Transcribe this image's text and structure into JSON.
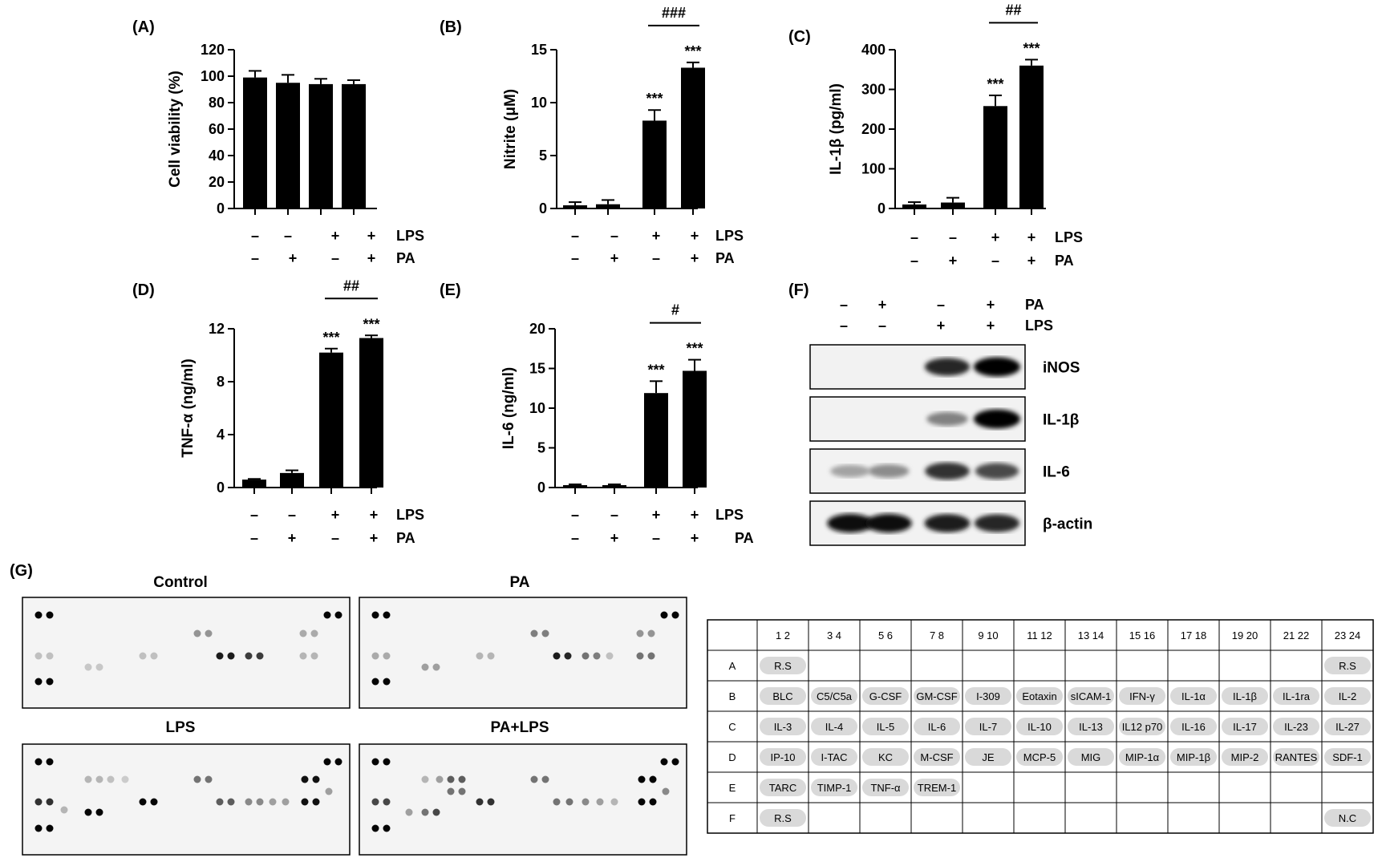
{
  "conditions": {
    "lps": [
      "–",
      "–",
      "+",
      "+"
    ],
    "pa": [
      "–",
      "+",
      "–",
      "+"
    ],
    "lps_label": "LPS",
    "pa_label": "PA"
  },
  "chart_data": [
    {
      "id": "A",
      "panel_label": "(A)",
      "type": "bar",
      "categories": [
        "–/–",
        "–/+",
        "+/–",
        "+/+"
      ],
      "values": [
        99,
        95,
        94,
        94
      ],
      "errors": [
        5,
        6,
        4,
        3
      ],
      "ylabel": "Cell viability (%)",
      "ylim": [
        0,
        120
      ],
      "yticks": [
        0,
        20,
        40,
        60,
        80,
        100,
        120
      ],
      "bar_sig": [
        "",
        "",
        "",
        ""
      ],
      "bracket": ""
    },
    {
      "id": "B",
      "panel_label": "(B)",
      "type": "bar",
      "categories": [
        "–/–",
        "–/+",
        "+/–",
        "+/+"
      ],
      "values": [
        0.3,
        0.4,
        8.3,
        13.3
      ],
      "errors": [
        0.3,
        0.4,
        1.0,
        0.5
      ],
      "ylabel": "Nitrite (μM)",
      "ylim": [
        0,
        15
      ],
      "yticks": [
        0,
        5,
        10,
        15
      ],
      "bar_sig": [
        "",
        "",
        "***",
        "***"
      ],
      "bracket": "###"
    },
    {
      "id": "C",
      "panel_label": "(C)",
      "type": "bar",
      "categories": [
        "–/–",
        "–/+",
        "+/–",
        "+/+"
      ],
      "values": [
        10,
        15,
        258,
        360
      ],
      "errors": [
        6,
        12,
        27,
        15
      ],
      "ylabel": "IL-1β (pg/ml)",
      "ylim": [
        0,
        400
      ],
      "yticks": [
        0,
        100,
        200,
        300,
        400
      ],
      "bar_sig": [
        "",
        "",
        "***",
        "***"
      ],
      "bracket": "##"
    },
    {
      "id": "D",
      "panel_label": "(D)",
      "type": "bar",
      "categories": [
        "–/–",
        "–/+",
        "+/–",
        "+/+"
      ],
      "values": [
        0.6,
        1.1,
        10.2,
        11.3
      ],
      "errors": [
        0.05,
        0.2,
        0.3,
        0.2
      ],
      "ylabel": "TNF-α (ng/ml)",
      "ylim": [
        0,
        12
      ],
      "yticks": [
        0,
        4,
        8,
        12
      ],
      "bar_sig": [
        "",
        "",
        "***",
        "***"
      ],
      "bracket": "##"
    },
    {
      "id": "E",
      "panel_label": "(E)",
      "type": "bar",
      "categories": [
        "–/–",
        "–/+",
        "+/–",
        "+/+"
      ],
      "values": [
        0.3,
        0.3,
        11.9,
        14.7
      ],
      "errors": [
        0.1,
        0.1,
        1.5,
        1.4
      ],
      "ylabel": "IL-6 (ng/ml)",
      "ylim": [
        0,
        20
      ],
      "yticks": [
        0,
        5,
        10,
        15,
        20
      ],
      "bar_sig": [
        "",
        "",
        "***",
        "***"
      ],
      "bracket": "#"
    }
  ],
  "blot": {
    "panel_label": "(F)",
    "pa_row": [
      "–",
      "+",
      "–",
      "+"
    ],
    "lps_row": [
      "–",
      "–",
      "+",
      "+"
    ],
    "pa_label": "PA",
    "lps_label": "LPS",
    "proteins": [
      {
        "name": "iNOS",
        "intensity": [
          0,
          0,
          0.85,
          1.0
        ]
      },
      {
        "name": "IL-1β",
        "intensity": [
          0,
          0,
          0.45,
          1.0
        ]
      },
      {
        "name": "IL-6",
        "intensity": [
          0.3,
          0.4,
          0.8,
          0.7
        ]
      },
      {
        "name": "β-actin",
        "intensity": [
          0.95,
          0.95,
          0.9,
          0.85
        ]
      }
    ]
  },
  "array": {
    "panel_label": "(G)",
    "membranes": [
      "Control",
      "PA",
      "LPS",
      "PA+LPS"
    ],
    "col_headers": [
      "1 2",
      "3 4",
      "5 6",
      "7 8",
      "9 10",
      "11 12",
      "13 14",
      "15 16",
      "17 18",
      "19 20",
      "21 22",
      "23 24"
    ],
    "rows": [
      {
        "label": "A",
        "cells": [
          "R.S",
          "",
          "",
          "",
          "",
          "",
          "",
          "",
          "",
          "",
          "",
          "R.S"
        ]
      },
      {
        "label": "B",
        "cells": [
          "BLC",
          "C5/C5a",
          "G-CSF",
          "GM-CSF",
          "I-309",
          "Eotaxin",
          "sICAM-1",
          "IFN-γ",
          "IL-1α",
          "IL-1β",
          "IL-1ra",
          "IL-2"
        ]
      },
      {
        "label": "C",
        "cells": [
          "IL-3",
          "IL-4",
          "IL-5",
          "IL-6",
          "IL-7",
          "IL-10",
          "IL-13",
          "IL12 p70",
          "IL-16",
          "IL-17",
          "IL-23",
          "IL-27"
        ]
      },
      {
        "label": "D",
        "cells": [
          "IP-10",
          "I-TAC",
          "KC",
          "M-CSF",
          "JE",
          "MCP-5",
          "MIG",
          "MIP-1α",
          "MIP-1β",
          "MIP-2",
          "RANTES",
          "SDF-1"
        ]
      },
      {
        "label": "E",
        "cells": [
          "TARC",
          "TIMP-1",
          "TNF-α",
          "TREM-1",
          "",
          "",
          "",
          "",
          "",
          "",
          "",
          ""
        ]
      },
      {
        "label": "F",
        "cells": [
          "R.S",
          "",
          "",
          "",
          "",
          "",
          "",
          "",
          "",
          "",
          "",
          "N.C"
        ]
      }
    ]
  }
}
